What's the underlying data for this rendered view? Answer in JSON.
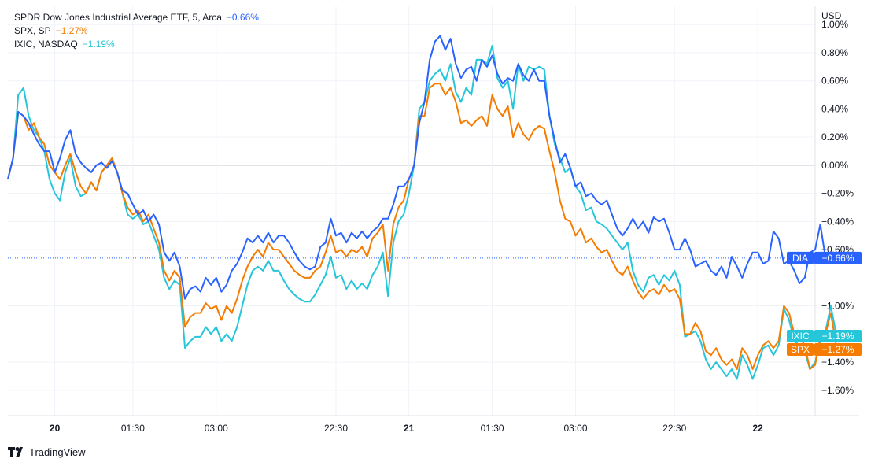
{
  "legend": [
    {
      "name": "SPDR Dow Jones Industrial Average ETF, 5, Arca",
      "value": "−0.66%",
      "color": "#2962ff"
    },
    {
      "name": "SPX, SP",
      "value": "−1.27%",
      "color": "#f57c00"
    },
    {
      "name": "IXIC, NASDAQ",
      "value": "−1.19%",
      "color": "#26c6da"
    }
  ],
  "brand": {
    "name": "TradingView"
  },
  "chart_data": {
    "type": "line",
    "title": "",
    "currency_label": "USD",
    "y_ticks": [
      {
        "v": 1.0,
        "label": "1.00%"
      },
      {
        "v": 0.8,
        "label": "0.80%"
      },
      {
        "v": 0.6,
        "label": "0.60%"
      },
      {
        "v": 0.4,
        "label": "0.40%"
      },
      {
        "v": 0.2,
        "label": "0.20%"
      },
      {
        "v": 0.0,
        "label": "0.00%"
      },
      {
        "v": -0.2,
        "label": "−0.20%"
      },
      {
        "v": -0.4,
        "label": "−0.40%"
      },
      {
        "v": -0.6,
        "label": "−0.60%"
      },
      {
        "v": -1.0,
        "label": "−1.00%"
      },
      {
        "v": -1.4,
        "label": "−1.40%"
      },
      {
        "v": -1.6,
        "label": "−1.60%"
      }
    ],
    "ylim": [
      -1.78,
      1.13
    ],
    "x_ticks": [
      {
        "x": 9,
        "label": "20",
        "bold": true
      },
      {
        "x": 24,
        "label": "01:30",
        "bold": false
      },
      {
        "x": 40,
        "label": "03:00",
        "bold": false
      },
      {
        "x": 63,
        "label": "22:30",
        "bold": false
      },
      {
        "x": 77,
        "label": "21",
        "bold": true
      },
      {
        "x": 93,
        "label": "01:30",
        "bold": false
      },
      {
        "x": 109,
        "label": "03:00",
        "bold": false
      },
      {
        "x": 128,
        "label": "22:30",
        "bold": false
      },
      {
        "x": 144,
        "label": "22",
        "bold": true
      }
    ],
    "xlim": [
      0,
      155
    ],
    "grid": true,
    "series": [
      {
        "name": "DIA",
        "color": "#2962ff",
        "last_label": "−0.66%",
        "values": [
          -0.1,
          0.05,
          0.38,
          0.35,
          0.3,
          0.22,
          0.15,
          0.1,
          0.1,
          -0.05,
          0.05,
          0.18,
          0.25,
          0.08,
          0.02,
          -0.02,
          -0.05,
          0.0,
          0.02,
          -0.02,
          0.03,
          -0.05,
          -0.18,
          -0.2,
          -0.28,
          -0.35,
          -0.32,
          -0.4,
          -0.35,
          -0.42,
          -0.62,
          -0.68,
          -0.62,
          -0.72,
          -0.95,
          -0.88,
          -0.86,
          -0.9,
          -0.8,
          -0.85,
          -0.8,
          -0.9,
          -0.85,
          -0.75,
          -0.7,
          -0.62,
          -0.52,
          -0.55,
          -0.5,
          -0.55,
          -0.48,
          -0.55,
          -0.5,
          -0.5,
          -0.55,
          -0.62,
          -0.68,
          -0.72,
          -0.74,
          -0.72,
          -0.58,
          -0.55,
          -0.38,
          -0.5,
          -0.48,
          -0.55,
          -0.48,
          -0.52,
          -0.47,
          -0.52,
          -0.47,
          -0.44,
          -0.38,
          -0.38,
          -0.28,
          -0.15,
          -0.15,
          -0.1,
          0.0,
          0.3,
          0.45,
          0.75,
          0.88,
          0.92,
          0.82,
          0.9,
          0.72,
          0.62,
          0.68,
          0.7,
          0.6,
          0.75,
          0.7,
          0.78,
          0.65,
          0.58,
          0.62,
          0.6,
          0.72,
          0.64,
          0.6,
          0.68,
          0.6,
          0.6,
          0.35,
          0.18,
          0.02,
          0.08,
          -0.02,
          -0.15,
          -0.12,
          -0.22,
          -0.2,
          -0.25,
          -0.28,
          -0.25,
          -0.35,
          -0.45,
          -0.5,
          -0.45,
          -0.38,
          -0.45,
          -0.4,
          -0.48,
          -0.37,
          -0.4,
          -0.38,
          -0.48,
          -0.6,
          -0.6,
          -0.52,
          -0.6,
          -0.72,
          -0.7,
          -0.68,
          -0.75,
          -0.78,
          -0.72,
          -0.8,
          -0.65,
          -0.72,
          -0.8,
          -0.7,
          -0.62,
          -0.62,
          -0.7,
          -0.68,
          -0.47,
          -0.52,
          -0.7,
          -0.68,
          -0.75,
          -0.84,
          -0.8,
          -0.62,
          -0.6,
          -0.42,
          -0.66
        ]
      },
      {
        "name": "SPX",
        "color": "#f57c00",
        "last_label": "−1.27%",
        "values": [
          -0.1,
          0.05,
          0.38,
          0.35,
          0.25,
          0.3,
          0.2,
          0.15,
          0.0,
          -0.05,
          -0.1,
          0.0,
          0.08,
          -0.05,
          -0.15,
          -0.2,
          -0.12,
          -0.18,
          -0.05,
          0.0,
          0.05,
          -0.05,
          -0.2,
          -0.3,
          -0.35,
          -0.32,
          -0.4,
          -0.35,
          -0.45,
          -0.55,
          -0.75,
          -0.82,
          -0.75,
          -0.8,
          -1.15,
          -1.08,
          -1.05,
          -1.05,
          -0.98,
          -1.02,
          -1.0,
          -1.1,
          -1.0,
          -1.05,
          -0.95,
          -0.82,
          -0.72,
          -0.65,
          -0.6,
          -0.65,
          -0.55,
          -0.6,
          -0.6,
          -0.65,
          -0.7,
          -0.75,
          -0.78,
          -0.8,
          -0.8,
          -0.75,
          -0.72,
          -0.62,
          -0.5,
          -0.62,
          -0.6,
          -0.65,
          -0.6,
          -0.62,
          -0.58,
          -0.65,
          -0.52,
          -0.48,
          -0.42,
          -0.75,
          -0.42,
          -0.3,
          -0.25,
          -0.1,
          0.0,
          0.35,
          0.35,
          0.55,
          0.58,
          0.58,
          0.5,
          0.55,
          0.45,
          0.3,
          0.32,
          0.28,
          0.32,
          0.35,
          0.28,
          0.5,
          0.4,
          0.35,
          0.42,
          0.2,
          0.3,
          0.22,
          0.18,
          0.25,
          0.28,
          0.26,
          0.1,
          -0.05,
          -0.25,
          -0.38,
          -0.4,
          -0.5,
          -0.45,
          -0.55,
          -0.52,
          -0.58,
          -0.62,
          -0.6,
          -0.68,
          -0.75,
          -0.78,
          -0.72,
          -0.82,
          -0.9,
          -0.95,
          -0.9,
          -0.88,
          -0.92,
          -0.85,
          -0.9,
          -0.88,
          -0.95,
          -1.2,
          -1.2,
          -1.12,
          -1.18,
          -1.32,
          -1.35,
          -1.3,
          -1.38,
          -1.42,
          -1.38,
          -1.45,
          -1.3,
          -1.35,
          -1.45,
          -1.35,
          -1.28,
          -1.25,
          -1.3,
          -1.25,
          -1.0,
          -1.05,
          -1.2,
          -1.22,
          -1.28,
          -1.45,
          -1.42,
          -1.22,
          -1.2,
          -1.05,
          -1.27
        ]
      },
      {
        "name": "IXIC",
        "color": "#26c6da",
        "last_label": "−1.19%",
        "values": [
          -0.1,
          0.05,
          0.5,
          0.55,
          0.35,
          0.25,
          0.2,
          0.1,
          -0.1,
          -0.2,
          -0.25,
          -0.05,
          0.05,
          -0.15,
          -0.22,
          -0.2,
          -0.12,
          -0.18,
          -0.05,
          0.0,
          0.05,
          -0.05,
          -0.2,
          -0.35,
          -0.38,
          -0.35,
          -0.42,
          -0.4,
          -0.5,
          -0.6,
          -0.8,
          -0.88,
          -0.82,
          -0.85,
          -1.3,
          -1.25,
          -1.22,
          -1.22,
          -1.15,
          -1.2,
          -1.15,
          -1.25,
          -1.2,
          -1.25,
          -1.15,
          -1.0,
          -0.85,
          -0.75,
          -0.72,
          -0.75,
          -0.68,
          -0.75,
          -0.75,
          -0.82,
          -0.88,
          -0.92,
          -0.95,
          -0.97,
          -0.97,
          -0.92,
          -0.85,
          -0.78,
          -0.65,
          -0.8,
          -0.78,
          -0.88,
          -0.82,
          -0.88,
          -0.84,
          -0.88,
          -0.78,
          -0.72,
          -0.62,
          -0.93,
          -0.55,
          -0.4,
          -0.35,
          -0.2,
          0.0,
          0.4,
          0.45,
          0.6,
          0.65,
          0.68,
          0.6,
          0.72,
          0.52,
          0.45,
          0.55,
          0.5,
          0.75,
          0.75,
          0.72,
          0.85,
          0.62,
          0.55,
          0.6,
          0.4,
          0.72,
          0.6,
          0.7,
          0.68,
          0.7,
          0.68,
          0.35,
          0.15,
          0.05,
          -0.05,
          -0.02,
          -0.15,
          -0.2,
          -0.32,
          -0.3,
          -0.4,
          -0.42,
          -0.45,
          -0.5,
          -0.55,
          -0.6,
          -0.55,
          -0.75,
          -0.85,
          -0.9,
          -0.8,
          -0.78,
          -0.85,
          -0.78,
          -0.82,
          -0.75,
          -0.85,
          -1.22,
          -1.2,
          -1.18,
          -1.25,
          -1.38,
          -1.45,
          -1.4,
          -1.45,
          -1.5,
          -1.45,
          -1.52,
          -1.35,
          -1.42,
          -1.52,
          -1.42,
          -1.3,
          -1.28,
          -1.35,
          -1.28,
          -1.02,
          -1.1,
          -1.25,
          -1.28,
          -1.32,
          -1.45,
          -1.4,
          -1.25,
          -1.18,
          -1.0,
          -1.19
        ]
      }
    ]
  }
}
